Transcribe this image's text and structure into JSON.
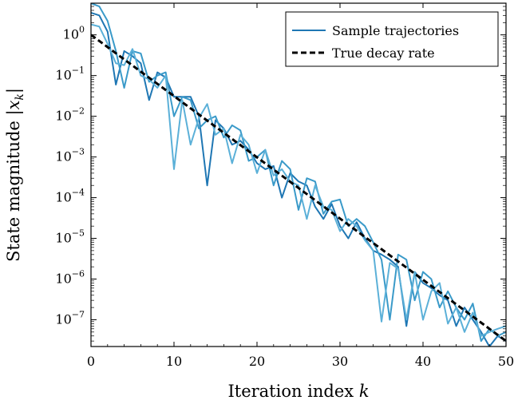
{
  "chart_data": {
    "type": "line",
    "xlabel": "Iteration index k",
    "ylabel": "State magnitude |x_k|",
    "xlim": [
      0,
      50
    ],
    "ylim": [
      2.2e-08,
      6.0
    ],
    "yscale": "log",
    "grid": false,
    "legend_position": "top-right",
    "x_ticks": [
      0,
      10,
      20,
      30,
      40,
      50
    ],
    "x_tick_labels": [
      "0",
      "10",
      "20",
      "30",
      "40",
      "50"
    ],
    "y_ticks": [
      1e-07,
      1e-06,
      1e-05,
      0.0001,
      0.001,
      0.01,
      0.1,
      1
    ],
    "y_tick_exponents": [
      "−7",
      "−6",
      "−5",
      "−4",
      "−3",
      "−2",
      "−1",
      "0"
    ],
    "y_tick_base": "10",
    "series": [
      {
        "name": "Sample trajectories",
        "color": "#1f77b4",
        "style": "solid",
        "x": [
          0,
          1,
          2,
          3,
          4,
          5,
          6,
          7,
          8,
          9,
          10,
          11,
          12,
          13,
          14,
          15,
          16,
          17,
          18,
          19,
          20,
          21,
          22,
          23,
          24,
          25,
          26,
          27,
          28,
          29,
          30,
          31,
          32,
          33,
          34,
          35,
          36,
          37,
          38,
          39,
          40,
          41,
          42,
          43,
          44,
          45,
          46,
          47,
          48,
          49,
          50
        ],
        "y": [
          3.5,
          3.0,
          1.2,
          0.06,
          0.4,
          0.3,
          0.2,
          0.025,
          0.12,
          0.09,
          0.03,
          0.03,
          0.03,
          0.01,
          0.0002,
          0.008,
          0.005,
          0.002,
          0.0025,
          0.0015,
          0.0007,
          0.0005,
          0.0006,
          0.0001,
          0.0004,
          0.00025,
          0.0002,
          6e-05,
          3e-05,
          7e-05,
          2e-05,
          1e-05,
          2.5e-05,
          1e-05,
          5e-06,
          4e-06,
          3e-06,
          2e-06,
          7e-08,
          1.5e-06,
          8e-07,
          6e-07,
          4e-07,
          3e-07,
          7e-08,
          2e-07,
          1e-07,
          5e-08,
          2.2e-08,
          4e-08,
          3e-08
        ]
      },
      {
        "name": "",
        "color": "#3a9ac9",
        "style": "solid",
        "x": [
          0,
          1,
          2,
          3,
          4,
          5,
          6,
          7,
          8,
          9,
          10,
          11,
          12,
          13,
          14,
          15,
          16,
          17,
          18,
          19,
          20,
          21,
          22,
          23,
          24,
          25,
          26,
          27,
          28,
          29,
          30,
          31,
          32,
          33,
          34,
          35,
          36,
          37,
          38,
          39,
          40,
          41,
          42,
          43,
          44,
          45,
          46,
          47,
          48,
          49,
          50
        ],
        "y": [
          6.0,
          5.0,
          2.2,
          0.4,
          0.05,
          0.4,
          0.35,
          0.07,
          0.1,
          0.12,
          0.01,
          0.03,
          0.025,
          0.005,
          0.008,
          0.01,
          0.003,
          0.006,
          0.0045,
          0.0008,
          0.001,
          0.0015,
          0.0002,
          0.0008,
          0.0005,
          5e-05,
          0.0003,
          0.00025,
          4e-05,
          8e-05,
          9e-05,
          2e-05,
          3e-05,
          2e-05,
          8e-06,
          3e-06,
          1e-07,
          4e-06,
          3e-06,
          3e-07,
          1.5e-06,
          1e-06,
          2e-07,
          5e-07,
          2e-07,
          1e-07,
          2.5e-07,
          3e-08,
          6e-08,
          4e-08,
          5e-08
        ]
      },
      {
        "name": "",
        "color": "#5bb0d8",
        "style": "solid",
        "x": [
          0,
          1,
          2,
          3,
          4,
          5,
          6,
          7,
          8,
          9,
          10,
          11,
          12,
          13,
          14,
          15,
          16,
          17,
          18,
          19,
          20,
          21,
          22,
          23,
          24,
          25,
          26,
          27,
          28,
          29,
          30,
          31,
          32,
          33,
          34,
          35,
          36,
          37,
          38,
          39,
          40,
          41,
          42,
          43,
          44,
          45,
          46,
          47,
          48,
          49,
          50
        ],
        "y": [
          1.8,
          1.6,
          0.6,
          0.2,
          0.18,
          0.45,
          0.1,
          0.08,
          0.05,
          0.1,
          0.0005,
          0.025,
          0.002,
          0.009,
          0.02,
          0.0035,
          0.005,
          0.0007,
          0.0035,
          0.002,
          0.0004,
          0.0015,
          0.00035,
          0.0005,
          0.00025,
          0.0002,
          3e-05,
          0.0002,
          6e-05,
          5e-05,
          1.5e-05,
          3e-05,
          2e-05,
          9e-06,
          5e-06,
          9e-08,
          2.5e-06,
          1.8e-06,
          1e-07,
          1.5e-06,
          1e-07,
          5e-07,
          8e-07,
          8e-08,
          2e-07,
          5e-08,
          1.5e-07,
          4e-08,
          5e-08,
          6e-08,
          7e-08
        ]
      },
      {
        "name": "True decay rate",
        "color": "#000000",
        "style": "dashed",
        "x": [
          0,
          50
        ],
        "y": [
          1.0,
          3e-08
        ]
      }
    ]
  }
}
